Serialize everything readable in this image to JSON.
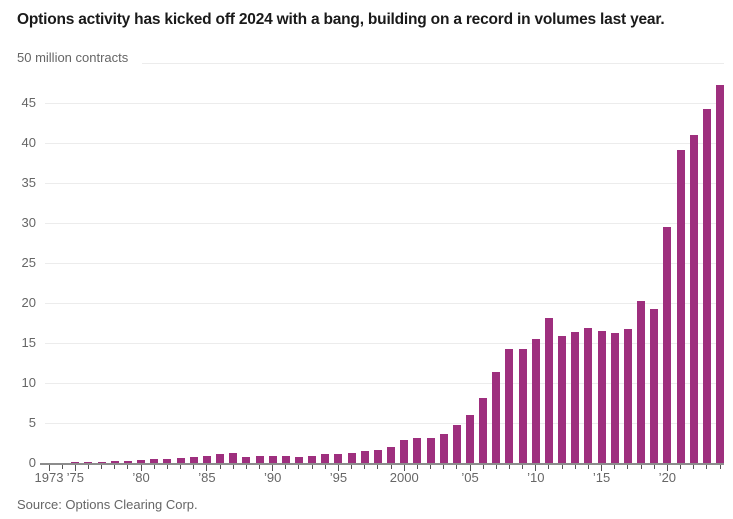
{
  "title": "Options activity has kicked off 2024 with a bang, building on a record in volumes last year.",
  "source": "Source: Options Clearing Corp.",
  "colors": {
    "bar": "#9e2f7e",
    "gridline": "#ececec",
    "axis_line": "#8c8c8c",
    "tick": "#555555",
    "axis_text": "#666666",
    "title_text": "#1a1a1a"
  },
  "chart_data": {
    "type": "bar",
    "title": "Options activity has kicked off 2024 with a bang, building on a record in volumes last year.",
    "unit_label": "50 million contracts",
    "ylabel": "million contracts",
    "ylim": [
      0,
      50
    ],
    "ytick_step": 5,
    "yticks": [
      0,
      5,
      10,
      15,
      20,
      25,
      30,
      35,
      40,
      45
    ],
    "grid": true,
    "legend": "none",
    "categories": [
      1973,
      1974,
      1975,
      1976,
      1977,
      1978,
      1979,
      1980,
      1981,
      1982,
      1983,
      1984,
      1985,
      1986,
      1987,
      1988,
      1989,
      1990,
      1991,
      1992,
      1993,
      1994,
      1995,
      1996,
      1997,
      1998,
      1999,
      2000,
      2001,
      2002,
      2003,
      2004,
      2005,
      2006,
      2007,
      2008,
      2009,
      2010,
      2011,
      2012,
      2013,
      2014,
      2015,
      2016,
      2017,
      2018,
      2019,
      2020,
      2021,
      2022,
      2023,
      2024
    ],
    "values": [
      0.02,
      0.02,
      0.07,
      0.13,
      0.16,
      0.23,
      0.25,
      0.38,
      0.44,
      0.55,
      0.6,
      0.78,
      0.92,
      1.1,
      1.2,
      0.77,
      0.9,
      0.83,
      0.82,
      0.8,
      0.92,
      1.1,
      1.15,
      1.3,
      1.45,
      1.65,
      2.0,
      2.9,
      3.1,
      3.1,
      3.6,
      4.7,
      6.0,
      8.1,
      11.4,
      14.2,
      14.3,
      15.5,
      18.1,
      15.9,
      16.4,
      16.9,
      16.5,
      16.2,
      16.7,
      20.2,
      19.2,
      29.5,
      39.1,
      41.0,
      44.2,
      47.3
    ],
    "xtick_labels": {
      "1973": "1973",
      "1975": "’75",
      "1980": "’80",
      "1985": "’85",
      "1990": "’90",
      "1995": "’95",
      "2000": "2000",
      "2005": "’05",
      "2010": "’10",
      "2015": "’15",
      "2020": "’20"
    }
  }
}
